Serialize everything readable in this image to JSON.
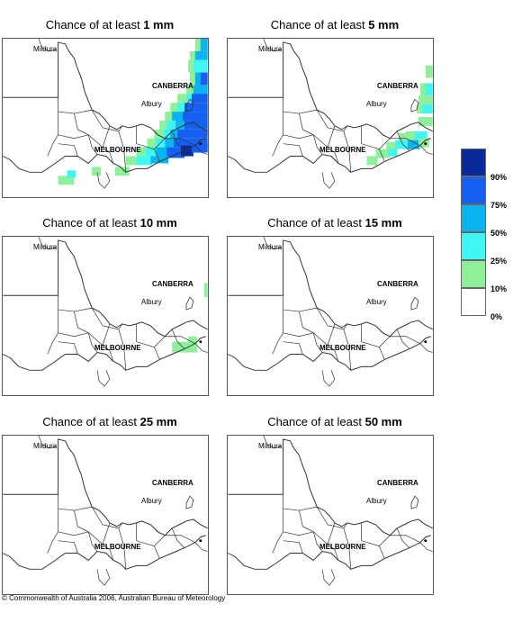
{
  "title_prefix": "Chance of at least",
  "panels": [
    {
      "threshold": "1 mm",
      "level": "1"
    },
    {
      "threshold": "5 mm",
      "level": "5"
    },
    {
      "threshold": "10 mm",
      "level": "10"
    },
    {
      "threshold": "15 mm",
      "level": "15"
    },
    {
      "threshold": "25 mm",
      "level": "25"
    },
    {
      "threshold": "50 mm",
      "level": "50"
    }
  ],
  "places": {
    "mildura": "Mildura",
    "canberra": "CANBERRA",
    "albury": "Albury",
    "melbourne": "MELBOURNE"
  },
  "legend": {
    "items": [
      {
        "label": "90%",
        "color": "#0a2a9a"
      },
      {
        "label": "75%",
        "color": "#1560f0"
      },
      {
        "label": "50%",
        "color": "#0ab4f0"
      },
      {
        "label": "25%",
        "color": "#3ff7f2"
      },
      {
        "label": "10%",
        "color": "#8ff09a"
      },
      {
        "label": "0%",
        "color": "#ffffff"
      }
    ]
  },
  "copyright": "© Commonwealth of Australia 2006, Australian Bureau of Meteorology"
}
